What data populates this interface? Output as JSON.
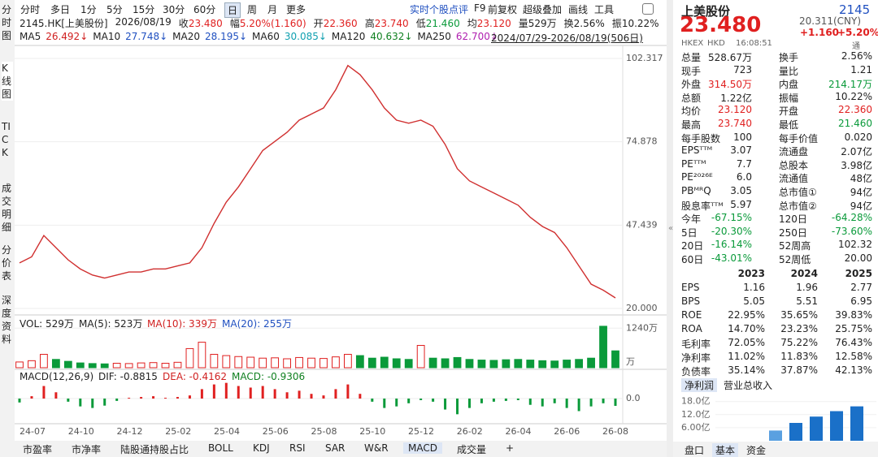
{
  "toolbar": {
    "periods": [
      "分时",
      "多日",
      "1分",
      "5分",
      "15分",
      "30分",
      "60分",
      "日",
      "周",
      "月",
      "更多"
    ],
    "tools": [
      "实时个股点评",
      "F9",
      "前复权",
      "超级叠加",
      "画线",
      "工具"
    ]
  },
  "side_tabs": [
    "分时图",
    "K线图",
    "TICK",
    "成交明细",
    "分价表",
    "深度资料"
  ],
  "info": [
    {
      "label": "2145.HK[上美股份]",
      "value": ""
    },
    {
      "label": "2026/08/19",
      "value": ""
    },
    {
      "label": "收",
      "value": "23.480"
    },
    {
      "label": "幅",
      "value": "5.20%(1.160)"
    },
    {
      "label": "开",
      "value": "22.360"
    },
    {
      "label": "高",
      "value": "23.740"
    },
    {
      "label": "低",
      "value": "21.460"
    },
    {
      "label": "均",
      "value": "23.120"
    },
    {
      "label": "量",
      "value": "529万"
    },
    {
      "label": "换",
      "value": "2.56%"
    },
    {
      "label": "振",
      "value": "10.22%"
    }
  ],
  "ma": [
    {
      "name": "MA5",
      "value": "26.492↓",
      "color": "#d02020"
    },
    {
      "name": "MA10",
      "value": "27.748↓",
      "color": "#2050c0"
    },
    {
      "name": "MA20",
      "value": "28.195↓",
      "color": "#2050c0"
    },
    {
      "name": "MA60",
      "value": "30.085↓",
      "color": "#10a0b0"
    },
    {
      "name": "MA120",
      "value": "40.632↓",
      "color": "#108020"
    },
    {
      "name": "MA250",
      "value": "62.700↓",
      "color": "#b020b0"
    }
  ],
  "range": "2024/07/29-2026/08/19(506日)",
  "kline": {
    "ylim": [
      17.86,
      105.52
    ],
    "yticks": [
      102.317,
      74.878,
      47.439,
      {
        "value": 20,
        "label": "20.000"
      }
    ],
    "color": "#d03030",
    "closes": [
      35,
      37,
      44,
      40,
      36,
      33,
      31,
      30,
      31,
      32,
      32,
      33,
      33,
      34,
      35,
      40,
      48,
      55,
      60,
      66,
      72,
      75,
      78,
      82,
      84,
      86,
      92,
      100,
      97,
      92,
      86,
      82,
      81,
      82,
      80,
      74,
      66,
      62,
      60,
      58,
      56,
      54,
      50,
      47,
      45,
      40,
      34,
      28,
      26,
      23.48
    ]
  },
  "volume": {
    "legend": [
      {
        "text": "VOL: 529万",
        "color": "#222"
      },
      {
        "text": "MA(5): 523万",
        "color": "#222"
      },
      {
        "text": "MA(10): 339万",
        "color": "#d02020"
      },
      {
        "text": "MA(20): 255万",
        "color": "#2050c0"
      }
    ],
    "ylim": [
      0,
      1400
    ],
    "yticks": [
      {
        "value": 1240,
        "label": "1240万"
      }
    ],
    "unit": "万",
    "values": [
      180,
      220,
      420,
      260,
      200,
      150,
      130,
      120,
      140,
      130,
      150,
      160,
      140,
      170,
      600,
      800,
      420,
      380,
      350,
      330,
      300,
      310,
      280,
      320,
      300,
      290,
      340,
      420,
      380,
      300,
      330,
      280,
      260,
      700,
      300,
      280,
      320,
      260,
      240,
      230,
      250,
      260,
      240,
      220,
      210,
      240,
      260,
      300,
      1300,
      529
    ]
  },
  "macd": {
    "legend": [
      {
        "text": "MACD(12,26,9)",
        "color": "#222"
      },
      {
        "text": "DIF: -0.8815",
        "color": "#222"
      },
      {
        "text": "DEA: -0.4162",
        "color": "#d02020"
      },
      {
        "text": "MACD: -0.9306",
        "color": "#108020"
      }
    ],
    "ylim": [
      -3,
      3
    ],
    "yticks": [
      {
        "value": 0,
        "label": "0.0"
      }
    ],
    "values": [
      -0.5,
      0.3,
      1.6,
      0.8,
      -0.4,
      -1.0,
      -1.2,
      -0.9,
      -0.3,
      0.1,
      0.2,
      0.3,
      0.1,
      0.2,
      0.4,
      1.2,
      1.8,
      2.0,
      1.6,
      1.4,
      1.6,
      1.2,
      0.8,
      1.0,
      0.6,
      0.4,
      1.2,
      1.8,
      0.6,
      -0.4,
      -1.2,
      -1.0,
      -0.6,
      -0.2,
      -0.4,
      -1.4,
      -2.0,
      -1.2,
      -0.6,
      -0.4,
      -0.3,
      -0.2,
      -0.8,
      -1.0,
      -0.6,
      -1.2,
      -1.6,
      -1.0,
      -0.6,
      -0.9306
    ]
  },
  "x_labels": [
    "24-07",
    "24-10",
    "24-12",
    "25-02",
    "25-04",
    "25-06",
    "25-08",
    "25-10",
    "25-12",
    "26-02",
    "26-04",
    "26-06",
    "26-08"
  ],
  "bottom_tabs": [
    "市盈率",
    "市净率",
    "陆股通持股占比",
    "BOLL",
    "KDJ",
    "RSI",
    "SAR",
    "W&R",
    "MACD",
    "成交量",
    "+"
  ],
  "quote": {
    "name": "上美股份",
    "code": "2145",
    "price": "23.480",
    "cny": "20.311(CNY)",
    "change": "+1.160",
    "pct": "+5.20%",
    "market": "HKEX",
    "currency": "HKD",
    "time": "16:08:51",
    "flag": "通"
  },
  "stats": [
    [
      "总量",
      "528.67万",
      "换手",
      "2.56%"
    ],
    [
      "现手",
      "723",
      "量比",
      "1.21"
    ],
    [
      "外盘",
      "314.50万",
      "内盘",
      "214.17万"
    ],
    [
      "总额",
      "1.22亿",
      "振幅",
      "10.22%"
    ],
    [
      "均价",
      "23.120",
      "开盘",
      "22.360"
    ],
    [
      "最高",
      "23.740",
      "最低",
      "21.460"
    ],
    [
      "每手股数",
      "100",
      "每手价值",
      "0.020"
    ],
    [
      "EPSᵀᵀᴹ",
      "3.07",
      "流通盘",
      "2.07亿"
    ],
    [
      "PEᵀᵀᴹ",
      "7.7",
      "总股本",
      "3.98亿"
    ],
    [
      "PE²⁰²⁶ᴱ",
      "6.0",
      "流通值",
      "48亿"
    ],
    [
      "PBᴹᴿQ",
      "3.05",
      "总市值①",
      "94亿"
    ],
    [
      "股息率ᵀᵀᴹ",
      "5.97",
      "总市值②",
      "94亿"
    ],
    [
      "今年",
      "-67.15%",
      "120日",
      "-64.28%"
    ],
    [
      "5日",
      "-20.30%",
      "250日",
      "-73.60%"
    ],
    [
      "20日",
      "-16.14%",
      "52周高",
      "102.32"
    ],
    [
      "60日",
      "-43.01%",
      "52周低",
      "20.00"
    ]
  ],
  "fin": {
    "years": [
      "2023",
      "2024",
      "2025"
    ],
    "rows": [
      [
        "EPS",
        "1.16",
        "1.96",
        "2.77"
      ],
      [
        "BPS",
        "5.05",
        "5.51",
        "6.95"
      ],
      [
        "ROE",
        "22.95%",
        "35.65%",
        "39.83%"
      ],
      [
        "ROA",
        "14.70%",
        "23.23%",
        "25.75%"
      ],
      [
        "毛利率",
        "72.05%",
        "75.22%",
        "76.43%"
      ],
      [
        "净利率",
        "11.02%",
        "11.83%",
        "12.58%"
      ],
      [
        "负债率",
        "35.14%",
        "37.87%",
        "42.13%"
      ]
    ]
  },
  "profit": {
    "tabs": [
      "净利润",
      "营业总收入"
    ],
    "ylim": [
      0,
      20.5
    ],
    "yticks": [
      {
        "value": 18,
        "label": "18.0亿"
      },
      {
        "value": 12,
        "label": "12.0亿"
      },
      {
        "value": 6,
        "label": "6.00亿"
      }
    ],
    "values": [
      4.7,
      8.2,
      11.1,
      13.6,
      15.8
    ],
    "colors": [
      "#5aa0e0",
      "#1a70c8",
      "#1a70c8",
      "#1a70c8",
      "#1a70c8"
    ]
  },
  "panel_tabs": [
    "盘口",
    "基本",
    "资金"
  ]
}
